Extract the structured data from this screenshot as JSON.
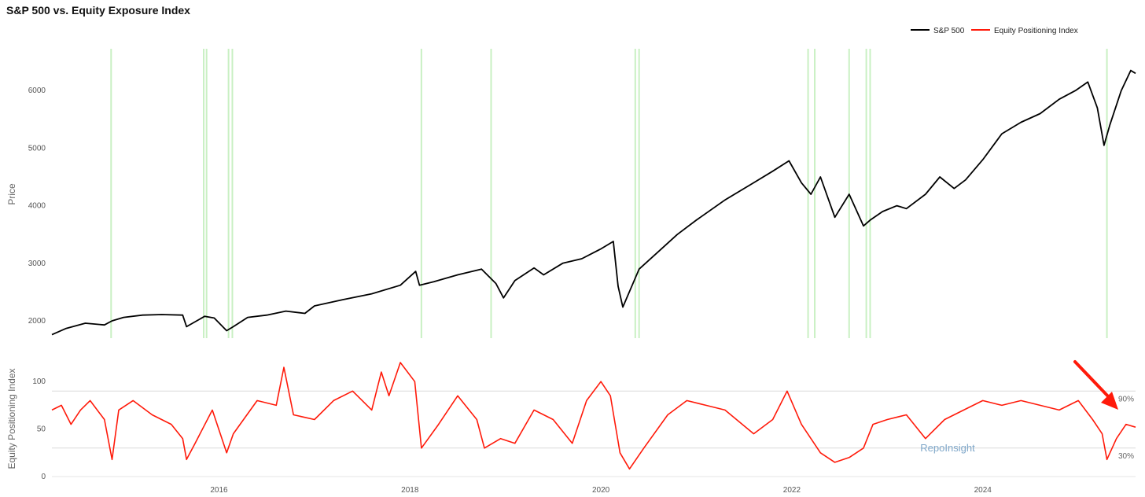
{
  "title": "S&P 500 vs. Equity Exposure Index",
  "legend": [
    {
      "name": "S&P 500",
      "color": "#000000"
    },
    {
      "name": "Equity Positioning Index",
      "color": "#ff1a0a"
    }
  ],
  "watermark": "RepoInsight",
  "colors": {
    "highlight_band": "#c9f0c3",
    "reference_line": "#d9d9d9",
    "arrow": "#ff1a0a"
  },
  "chart_data": [
    {
      "type": "line",
      "name": "S&P 500",
      "ylabel": "Price",
      "yticks": [
        2000,
        3000,
        4000,
        5000,
        6000
      ],
      "ylim": [
        1700,
        6700
      ],
      "xlim": [
        2014.25,
        2025.6
      ],
      "grid": false,
      "legend_position": "top-right",
      "highlight_dates": [
        2014.87,
        2015.84,
        2015.87,
        2016.1,
        2016.14,
        2018.12,
        2018.85,
        2020.36,
        2020.4,
        2022.17,
        2022.24,
        2022.6,
        2022.78,
        2022.82,
        2025.3
      ],
      "x": [
        2014.25,
        2014.4,
        2014.6,
        2014.8,
        2014.88,
        2015.0,
        2015.2,
        2015.4,
        2015.62,
        2015.66,
        2015.85,
        2015.95,
        2016.08,
        2016.15,
        2016.3,
        2016.5,
        2016.7,
        2016.9,
        2017.0,
        2017.3,
        2017.6,
        2017.9,
        2018.06,
        2018.1,
        2018.25,
        2018.5,
        2018.75,
        2018.9,
        2018.98,
        2019.1,
        2019.3,
        2019.4,
        2019.6,
        2019.8,
        2020.0,
        2020.13,
        2020.18,
        2020.23,
        2020.4,
        2020.6,
        2020.8,
        2021.0,
        2021.3,
        2021.6,
        2021.8,
        2021.97,
        2022.1,
        2022.2,
        2022.3,
        2022.45,
        2022.6,
        2022.75,
        2022.82,
        2022.95,
        2023.1,
        2023.2,
        2023.4,
        2023.55,
        2023.7,
        2023.82,
        2024.0,
        2024.2,
        2024.4,
        2024.6,
        2024.8,
        2024.97,
        2025.1,
        2025.2,
        2025.27,
        2025.33,
        2025.45,
        2025.55,
        2025.6
      ],
      "values": [
        1760,
        1870,
        1960,
        1930,
        2000,
        2060,
        2100,
        2110,
        2100,
        1900,
        2080,
        2050,
        1830,
        1900,
        2060,
        2100,
        2170,
        2130,
        2260,
        2370,
        2470,
        2620,
        2860,
        2620,
        2680,
        2800,
        2900,
        2650,
        2400,
        2700,
        2920,
        2800,
        3000,
        3080,
        3250,
        3380,
        2600,
        2240,
        2900,
        3200,
        3500,
        3750,
        4100,
        4400,
        4600,
        4780,
        4400,
        4200,
        4500,
        3800,
        4200,
        3650,
        3750,
        3900,
        4000,
        3950,
        4200,
        4500,
        4300,
        4450,
        4800,
        5250,
        5450,
        5600,
        5850,
        6000,
        6150,
        5700,
        5050,
        5400,
        6000,
        6350,
        6300
      ]
    },
    {
      "type": "line",
      "name": "Equity Positioning Index",
      "ylabel": "Equity Positioning Index",
      "yticks": [
        0,
        50,
        100
      ],
      "ylim": [
        0,
        125
      ],
      "xticks": [
        2016,
        2018,
        2020,
        2022,
        2024
      ],
      "reference_lines": [
        {
          "value": 90,
          "label": "90%"
        },
        {
          "value": 30,
          "label": "30%"
        }
      ],
      "grid": false,
      "x": [
        2014.25,
        2014.35,
        2014.45,
        2014.55,
        2014.65,
        2014.8,
        2014.88,
        2014.95,
        2015.1,
        2015.3,
        2015.5,
        2015.62,
        2015.66,
        2015.75,
        2015.93,
        2016.08,
        2016.15,
        2016.4,
        2016.6,
        2016.68,
        2016.78,
        2017.0,
        2017.2,
        2017.4,
        2017.6,
        2017.7,
        2017.78,
        2017.9,
        2018.05,
        2018.12,
        2018.3,
        2018.5,
        2018.7,
        2018.78,
        2018.95,
        2019.1,
        2019.3,
        2019.5,
        2019.7,
        2019.85,
        2020.0,
        2020.1,
        2020.2,
        2020.3,
        2020.45,
        2020.7,
        2020.9,
        2021.1,
        2021.3,
        2021.6,
        2021.8,
        2021.95,
        2022.1,
        2022.2,
        2022.3,
        2022.45,
        2022.6,
        2022.75,
        2022.85,
        2023.0,
        2023.2,
        2023.4,
        2023.45,
        2023.6,
        2023.8,
        2024.0,
        2024.2,
        2024.4,
        2024.6,
        2024.8,
        2025.0,
        2025.15,
        2025.25,
        2025.3,
        2025.4,
        2025.5,
        2025.6
      ],
      "values": [
        70,
        75,
        55,
        70,
        80,
        60,
        18,
        70,
        80,
        65,
        55,
        40,
        18,
        35,
        70,
        25,
        45,
        80,
        75,
        115,
        65,
        60,
        80,
        90,
        70,
        110,
        85,
        120,
        100,
        30,
        55,
        85,
        60,
        30,
        40,
        35,
        70,
        60,
        35,
        80,
        100,
        85,
        25,
        8,
        30,
        65,
        80,
        75,
        70,
        45,
        60,
        90,
        55,
        40,
        25,
        15,
        20,
        30,
        55,
        60,
        65,
        40,
        45,
        60,
        70,
        80,
        75,
        80,
        75,
        70,
        80,
        60,
        45,
        18,
        40,
        55,
        52
      ]
    }
  ]
}
